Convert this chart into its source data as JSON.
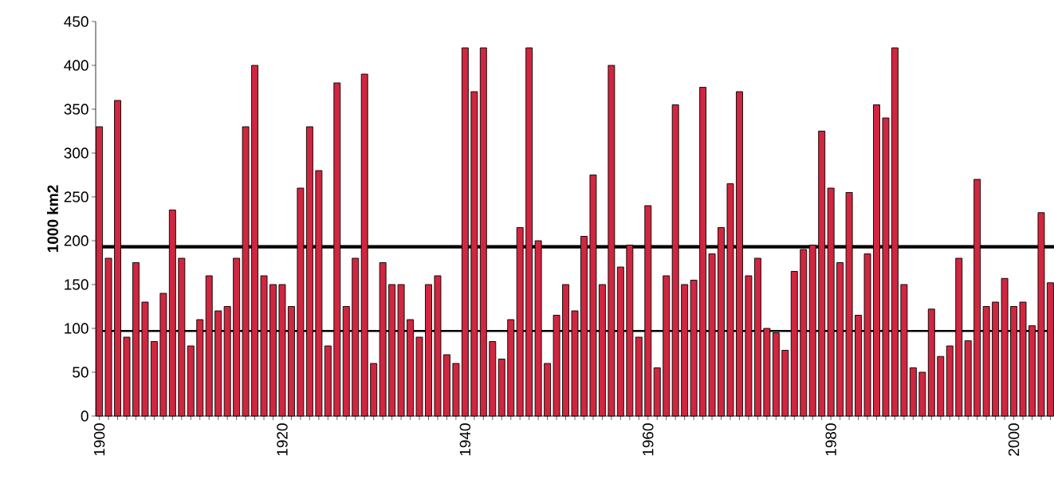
{
  "chart_data": {
    "type": "bar",
    "ylabel": "1000 km2",
    "x": [
      1900,
      1901,
      1902,
      1903,
      1904,
      1905,
      1906,
      1907,
      1908,
      1909,
      1910,
      1911,
      1912,
      1913,
      1914,
      1915,
      1916,
      1917,
      1918,
      1919,
      1920,
      1921,
      1922,
      1923,
      1924,
      1925,
      1926,
      1927,
      1928,
      1929,
      1930,
      1931,
      1932,
      1933,
      1934,
      1935,
      1936,
      1937,
      1938,
      1939,
      1940,
      1941,
      1942,
      1943,
      1944,
      1945,
      1946,
      1947,
      1948,
      1949,
      1950,
      1951,
      1952,
      1953,
      1954,
      1955,
      1956,
      1957,
      1958,
      1959,
      1960,
      1961,
      1962,
      1963,
      1964,
      1965,
      1966,
      1967,
      1968,
      1969,
      1970,
      1971,
      1972,
      1973,
      1974,
      1975,
      1976,
      1977,
      1978,
      1979,
      1980,
      1981,
      1982,
      1983,
      1984,
      1985,
      1986,
      1987,
      1988,
      1989,
      1990,
      1991,
      1992,
      1993,
      1994,
      1995,
      1996,
      1997,
      1998,
      1999,
      2000,
      2001,
      2002,
      2003,
      2004
    ],
    "values": [
      330,
      180,
      360,
      90,
      175,
      130,
      85,
      140,
      235,
      180,
      80,
      110,
      160,
      120,
      125,
      180,
      330,
      400,
      160,
      150,
      150,
      125,
      260,
      330,
      280,
      80,
      380,
      125,
      180,
      390,
      60,
      175,
      150,
      150,
      110,
      90,
      150,
      160,
      70,
      60,
      420,
      370,
      420,
      85,
      65,
      110,
      215,
      420,
      200,
      60,
      115,
      150,
      120,
      205,
      275,
      150,
      400,
      170,
      195,
      90,
      240,
      55,
      160,
      355,
      150,
      155,
      375,
      185,
      215,
      265,
      370,
      160,
      180,
      100,
      95,
      75,
      165,
      190,
      195,
      325,
      260,
      175,
      255,
      115,
      185,
      355,
      340,
      420,
      150,
      55,
      50,
      122,
      68,
      80,
      180,
      86,
      270,
      125,
      130,
      157,
      125,
      130,
      103,
      232,
      152
    ],
    "color": "#d0263f",
    "xlim": [
      1899.6,
      2004.4
    ],
    "ylim": [
      0,
      450
    ],
    "yticks": [
      0,
      50,
      100,
      150,
      200,
      250,
      300,
      350,
      400,
      450
    ],
    "xticks": [
      1900,
      {
        "value": 1901,
        "label": null
      },
      {
        "value": 1902,
        "label": null
      },
      {
        "value": 1903,
        "label": null
      },
      {
        "value": 1904,
        "label": null
      },
      {
        "value": 1905,
        "label": null
      },
      {
        "value": 1906,
        "label": null
      },
      {
        "value": 1907,
        "label": null
      },
      {
        "value": 1908,
        "label": null
      },
      {
        "value": 1909,
        "label": null
      },
      {
        "value": 1910,
        "label": null
      },
      {
        "value": 1911,
        "label": null
      },
      {
        "value": 1912,
        "label": null
      },
      {
        "value": 1913,
        "label": null
      },
      {
        "value": 1914,
        "label": null
      },
      {
        "value": 1915,
        "label": null
      },
      {
        "value": 1916,
        "label": null
      },
      {
        "value": 1917,
        "label": null
      },
      {
        "value": 1918,
        "label": null
      },
      {
        "value": 1919,
        "label": null
      },
      1920,
      {
        "value": 1921,
        "label": null
      },
      {
        "value": 1922,
        "label": null
      },
      {
        "value": 1923,
        "label": null
      },
      {
        "value": 1924,
        "label": null
      },
      {
        "value": 1925,
        "label": null
      },
      {
        "value": 1926,
        "label": null
      },
      {
        "value": 1927,
        "label": null
      },
      {
        "value": 1928,
        "label": null
      },
      {
        "value": 1929,
        "label": null
      },
      {
        "value": 1930,
        "label": null
      },
      {
        "value": 1931,
        "label": null
      },
      {
        "value": 1932,
        "label": null
      },
      {
        "value": 1933,
        "label": null
      },
      {
        "value": 1934,
        "label": null
      },
      {
        "value": 1935,
        "label": null
      },
      {
        "value": 1936,
        "label": null
      },
      {
        "value": 1937,
        "label": null
      },
      {
        "value": 1938,
        "label": null
      },
      {
        "value": 1939,
        "label": null
      },
      1940,
      {
        "value": 1941,
        "label": null
      },
      {
        "value": 1942,
        "label": null
      },
      {
        "value": 1943,
        "label": null
      },
      {
        "value": 1944,
        "label": null
      },
      {
        "value": 1945,
        "label": null
      },
      {
        "value": 1946,
        "label": null
      },
      {
        "value": 1947,
        "label": null
      },
      {
        "value": 1948,
        "label": null
      },
      {
        "value": 1949,
        "label": null
      },
      {
        "value": 1950,
        "label": null
      },
      {
        "value": 1951,
        "label": null
      },
      {
        "value": 1952,
        "label": null
      },
      {
        "value": 1953,
        "label": null
      },
      {
        "value": 1954,
        "label": null
      },
      {
        "value": 1955,
        "label": null
      },
      {
        "value": 1956,
        "label": null
      },
      {
        "value": 1957,
        "label": null
      },
      {
        "value": 1958,
        "label": null
      },
      {
        "value": 1959,
        "label": null
      },
      1960,
      {
        "value": 1961,
        "label": null
      },
      {
        "value": 1962,
        "label": null
      },
      {
        "value": 1963,
        "label": null
      },
      {
        "value": 1964,
        "label": null
      },
      {
        "value": 1965,
        "label": null
      },
      {
        "value": 1966,
        "label": null
      },
      {
        "value": 1967,
        "label": null
      },
      {
        "value": 1968,
        "label": null
      },
      {
        "value": 1969,
        "label": null
      },
      {
        "value": 1970,
        "label": null
      },
      {
        "value": 1971,
        "label": null
      },
      {
        "value": 1972,
        "label": null
      },
      {
        "value": 1973,
        "label": null
      },
      {
        "value": 1974,
        "label": null
      },
      {
        "value": 1975,
        "label": null
      },
      {
        "value": 1976,
        "label": null
      },
      {
        "value": 1977,
        "label": null
      },
      {
        "value": 1978,
        "label": null
      },
      {
        "value": 1979,
        "label": null
      },
      1980,
      {
        "value": 1981,
        "label": null
      },
      {
        "value": 1982,
        "label": null
      },
      {
        "value": 1983,
        "label": null
      },
      {
        "value": 1984,
        "label": null
      },
      {
        "value": 1985,
        "label": null
      },
      {
        "value": 1986,
        "label": null
      },
      {
        "value": 1987,
        "label": null
      },
      {
        "value": 1988,
        "label": null
      },
      {
        "value": 1989,
        "label": null
      },
      {
        "value": 1990,
        "label": null
      },
      {
        "value": 1991,
        "label": null
      },
      {
        "value": 1992,
        "label": null
      },
      {
        "value": 1993,
        "label": null
      },
      {
        "value": 1994,
        "label": null
      },
      {
        "value": 1995,
        "label": null
      },
      {
        "value": 1996,
        "label": null
      },
      {
        "value": 1997,
        "label": null
      },
      {
        "value": 1998,
        "label": null
      },
      {
        "value": 1999,
        "label": null
      },
      2000,
      {
        "value": 2001,
        "label": null
      },
      {
        "value": 2002,
        "label": null
      },
      {
        "value": 2003,
        "label": null
      },
      {
        "value": 2004,
        "label": null
      }
    ],
    "ref_lines": [
      {
        "axis": "y",
        "value": 193
      },
      {
        "axis": "y",
        "value": 97
      }
    ],
    "grid": false
  }
}
